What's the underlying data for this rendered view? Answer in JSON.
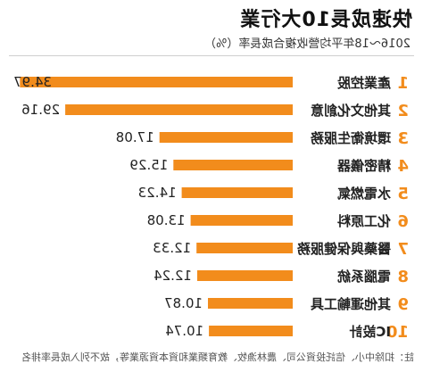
{
  "title": "快速成長10大行業",
  "subtitle": "2016～18年平均營收複合成長率（%）",
  "footnote": "註：扣除中小、信託投資公司、農林漁牧、教育類業和資本資源業等，故不列入成長率排名",
  "colors": {
    "bar": "#f28c1c",
    "rank": "#f28c1c",
    "text": "#222222"
  },
  "chart_data": {
    "type": "bar",
    "orientation": "horizontal",
    "title": "快速成長10大行業",
    "subtitle": "2016～18年平均營收複合成長率（%）",
    "xlim": [
      0,
      35
    ],
    "grid": false,
    "ranks": [
      "1",
      "2",
      "3",
      "4",
      "5",
      "6",
      "7",
      "8",
      "9",
      "10"
    ],
    "categories": [
      "產業控股",
      "其他文化創意",
      "環境衛生服務",
      "精密儀器",
      "水電燃氣",
      "化工原料",
      "醫藥與保健服務",
      "電腦系統",
      "其他運輸工具",
      "IC設計"
    ],
    "values": [
      34.97,
      29.16,
      17.08,
      15.29,
      14.23,
      13.08,
      12.33,
      12.24,
      10.87,
      10.74
    ],
    "value_labels": [
      "34.97",
      "29.16",
      "17.08",
      "15.29",
      "14.23",
      "13.08",
      "12.33",
      "12.24",
      "10.87",
      "10.74"
    ]
  }
}
